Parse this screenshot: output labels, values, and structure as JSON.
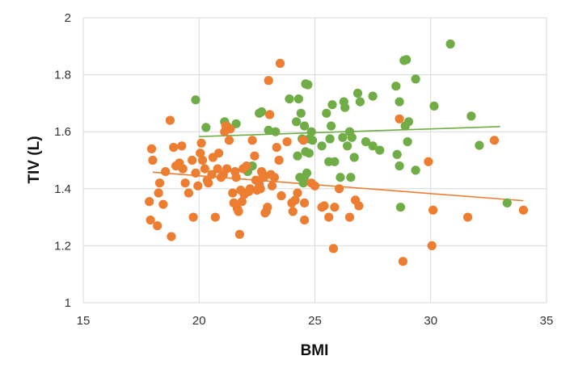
{
  "chart_data": {
    "type": "scatter",
    "xlabel": "BMI",
    "ylabel": "TIV (L)",
    "xlim": [
      15,
      35
    ],
    "ylim": [
      1,
      2
    ],
    "xticks": [
      15,
      20,
      25,
      30,
      35
    ],
    "yticks": [
      1,
      1.2,
      1.4,
      1.6,
      1.8,
      2
    ],
    "xtick_labels": [
      "15",
      "20",
      "25",
      "30",
      "35"
    ],
    "ytick_labels": [
      "1",
      "1.2",
      "1.4",
      "1.6",
      "1.8",
      "2"
    ],
    "grid": true,
    "legend": "none",
    "series": [
      {
        "color": "#70AD47",
        "trendline": [
          [
            20.0,
            1.583
          ],
          [
            33.0,
            1.618
          ]
        ],
        "points": [
          [
            19.85,
            1.712
          ],
          [
            20.3,
            1.615
          ],
          [
            21.1,
            1.635
          ],
          [
            21.6,
            1.628
          ],
          [
            21.2,
            1.62
          ],
          [
            22.3,
            1.48
          ],
          [
            22.1,
            1.46
          ],
          [
            22.6,
            1.665
          ],
          [
            22.7,
            1.67
          ],
          [
            23.0,
            1.605
          ],
          [
            23.3,
            1.6
          ],
          [
            23.9,
            1.715
          ],
          [
            24.3,
            1.715
          ],
          [
            24.6,
            1.768
          ],
          [
            24.7,
            1.765
          ],
          [
            24.4,
            1.665
          ],
          [
            24.2,
            1.635
          ],
          [
            24.55,
            1.62
          ],
          [
            24.85,
            1.6
          ],
          [
            24.45,
            1.575
          ],
          [
            24.75,
            1.575
          ],
          [
            24.9,
            1.57
          ],
          [
            24.25,
            1.515
          ],
          [
            24.6,
            1.53
          ],
          [
            24.75,
            1.525
          ],
          [
            24.35,
            1.44
          ],
          [
            24.55,
            1.44
          ],
          [
            24.65,
            1.455
          ],
          [
            24.5,
            1.42
          ],
          [
            25.3,
            1.55
          ],
          [
            25.5,
            1.665
          ],
          [
            25.75,
            1.695
          ],
          [
            25.7,
            1.62
          ],
          [
            25.65,
            1.575
          ],
          [
            25.6,
            1.495
          ],
          [
            25.85,
            1.495
          ],
          [
            26.1,
            1.44
          ],
          [
            26.25,
            1.705
          ],
          [
            26.3,
            1.685
          ],
          [
            26.5,
            1.6
          ],
          [
            26.2,
            1.58
          ],
          [
            26.4,
            1.55
          ],
          [
            26.6,
            1.58
          ],
          [
            26.85,
            1.735
          ],
          [
            26.95,
            1.705
          ],
          [
            26.7,
            1.51
          ],
          [
            26.55,
            1.44
          ],
          [
            27.2,
            1.565
          ],
          [
            27.5,
            1.725
          ],
          [
            27.5,
            1.55
          ],
          [
            27.8,
            1.535
          ],
          [
            28.5,
            1.76
          ],
          [
            28.65,
            1.705
          ],
          [
            28.85,
            1.85
          ],
          [
            28.95,
            1.853
          ],
          [
            28.9,
            1.62
          ],
          [
            29.05,
            1.635
          ],
          [
            28.55,
            1.52
          ],
          [
            28.65,
            1.48
          ],
          [
            29.0,
            1.565
          ],
          [
            29.35,
            1.785
          ],
          [
            29.35,
            1.465
          ],
          [
            28.7,
            1.335
          ],
          [
            30.15,
            1.69
          ],
          [
            30.85,
            1.908
          ],
          [
            31.75,
            1.655
          ],
          [
            32.1,
            1.552
          ],
          [
            33.3,
            1.35
          ]
        ]
      },
      {
        "color": "#ED7D31",
        "trendline": [
          [
            18.0,
            1.458
          ],
          [
            34.0,
            1.358
          ]
        ],
        "points": [
          [
            17.95,
            1.54
          ],
          [
            18.0,
            1.5
          ],
          [
            18.3,
            1.42
          ],
          [
            18.25,
            1.385
          ],
          [
            17.85,
            1.355
          ],
          [
            17.9,
            1.29
          ],
          [
            18.2,
            1.27
          ],
          [
            18.45,
            1.345
          ],
          [
            18.55,
            1.46
          ],
          [
            18.75,
            1.64
          ],
          [
            18.8,
            1.232
          ],
          [
            18.9,
            1.545
          ],
          [
            19.0,
            1.48
          ],
          [
            19.15,
            1.49
          ],
          [
            19.25,
            1.55
          ],
          [
            19.3,
            1.47
          ],
          [
            19.4,
            1.42
          ],
          [
            19.55,
            1.385
          ],
          [
            19.7,
            1.5
          ],
          [
            19.75,
            1.3
          ],
          [
            19.85,
            1.455
          ],
          [
            19.95,
            1.41
          ],
          [
            20.05,
            1.525
          ],
          [
            20.1,
            1.56
          ],
          [
            20.15,
            1.5
          ],
          [
            20.25,
            1.47
          ],
          [
            20.35,
            1.43
          ],
          [
            20.4,
            1.42
          ],
          [
            20.55,
            1.45
          ],
          [
            20.6,
            1.51
          ],
          [
            20.7,
            1.3
          ],
          [
            20.8,
            1.47
          ],
          [
            20.85,
            1.525
          ],
          [
            20.95,
            1.44
          ],
          [
            21.05,
            1.45
          ],
          [
            21.1,
            1.6
          ],
          [
            21.15,
            1.62
          ],
          [
            21.2,
            1.47
          ],
          [
            21.3,
            1.57
          ],
          [
            21.35,
            1.61
          ],
          [
            21.45,
            1.385
          ],
          [
            21.5,
            1.35
          ],
          [
            21.55,
            1.46
          ],
          [
            21.6,
            1.44
          ],
          [
            21.65,
            1.33
          ],
          [
            21.7,
            1.32
          ],
          [
            21.75,
            1.24
          ],
          [
            21.8,
            1.395
          ],
          [
            21.85,
            1.355
          ],
          [
            21.9,
            1.47
          ],
          [
            21.95,
            1.38
          ],
          [
            22.05,
            1.48
          ],
          [
            22.15,
            1.39
          ],
          [
            22.2,
            1.4
          ],
          [
            22.3,
            1.57
          ],
          [
            22.4,
            1.515
          ],
          [
            22.45,
            1.43
          ],
          [
            22.5,
            1.395
          ],
          [
            22.6,
            1.415
          ],
          [
            22.65,
            1.4
          ],
          [
            22.7,
            1.46
          ],
          [
            22.75,
            1.45
          ],
          [
            22.8,
            1.44
          ],
          [
            22.85,
            1.315
          ],
          [
            22.9,
            1.32
          ],
          [
            22.95,
            1.335
          ],
          [
            23.0,
            1.78
          ],
          [
            23.05,
            1.66
          ],
          [
            23.1,
            1.45
          ],
          [
            23.15,
            1.41
          ],
          [
            23.25,
            1.44
          ],
          [
            23.35,
            1.545
          ],
          [
            23.45,
            1.5
          ],
          [
            23.5,
            1.84
          ],
          [
            23.55,
            1.375
          ],
          [
            23.8,
            1.565
          ],
          [
            24.0,
            1.35
          ],
          [
            24.05,
            1.32
          ],
          [
            24.15,
            1.36
          ],
          [
            24.25,
            1.385
          ],
          [
            24.5,
            1.57
          ],
          [
            24.55,
            1.35
          ],
          [
            24.55,
            1.29
          ],
          [
            24.85,
            1.42
          ],
          [
            25.0,
            1.41
          ],
          [
            25.3,
            1.335
          ],
          [
            25.4,
            1.34
          ],
          [
            25.6,
            1.3
          ],
          [
            25.8,
            1.19
          ],
          [
            25.85,
            1.335
          ],
          [
            26.05,
            1.4
          ],
          [
            26.5,
            1.3
          ],
          [
            26.75,
            1.36
          ],
          [
            26.9,
            1.34
          ],
          [
            28.65,
            1.645
          ],
          [
            28.8,
            1.145
          ],
          [
            29.9,
            1.495
          ],
          [
            30.05,
            1.2
          ],
          [
            30.1,
            1.325
          ],
          [
            31.6,
            1.3
          ],
          [
            32.75,
            1.57
          ],
          [
            34.0,
            1.325
          ]
        ]
      }
    ]
  }
}
